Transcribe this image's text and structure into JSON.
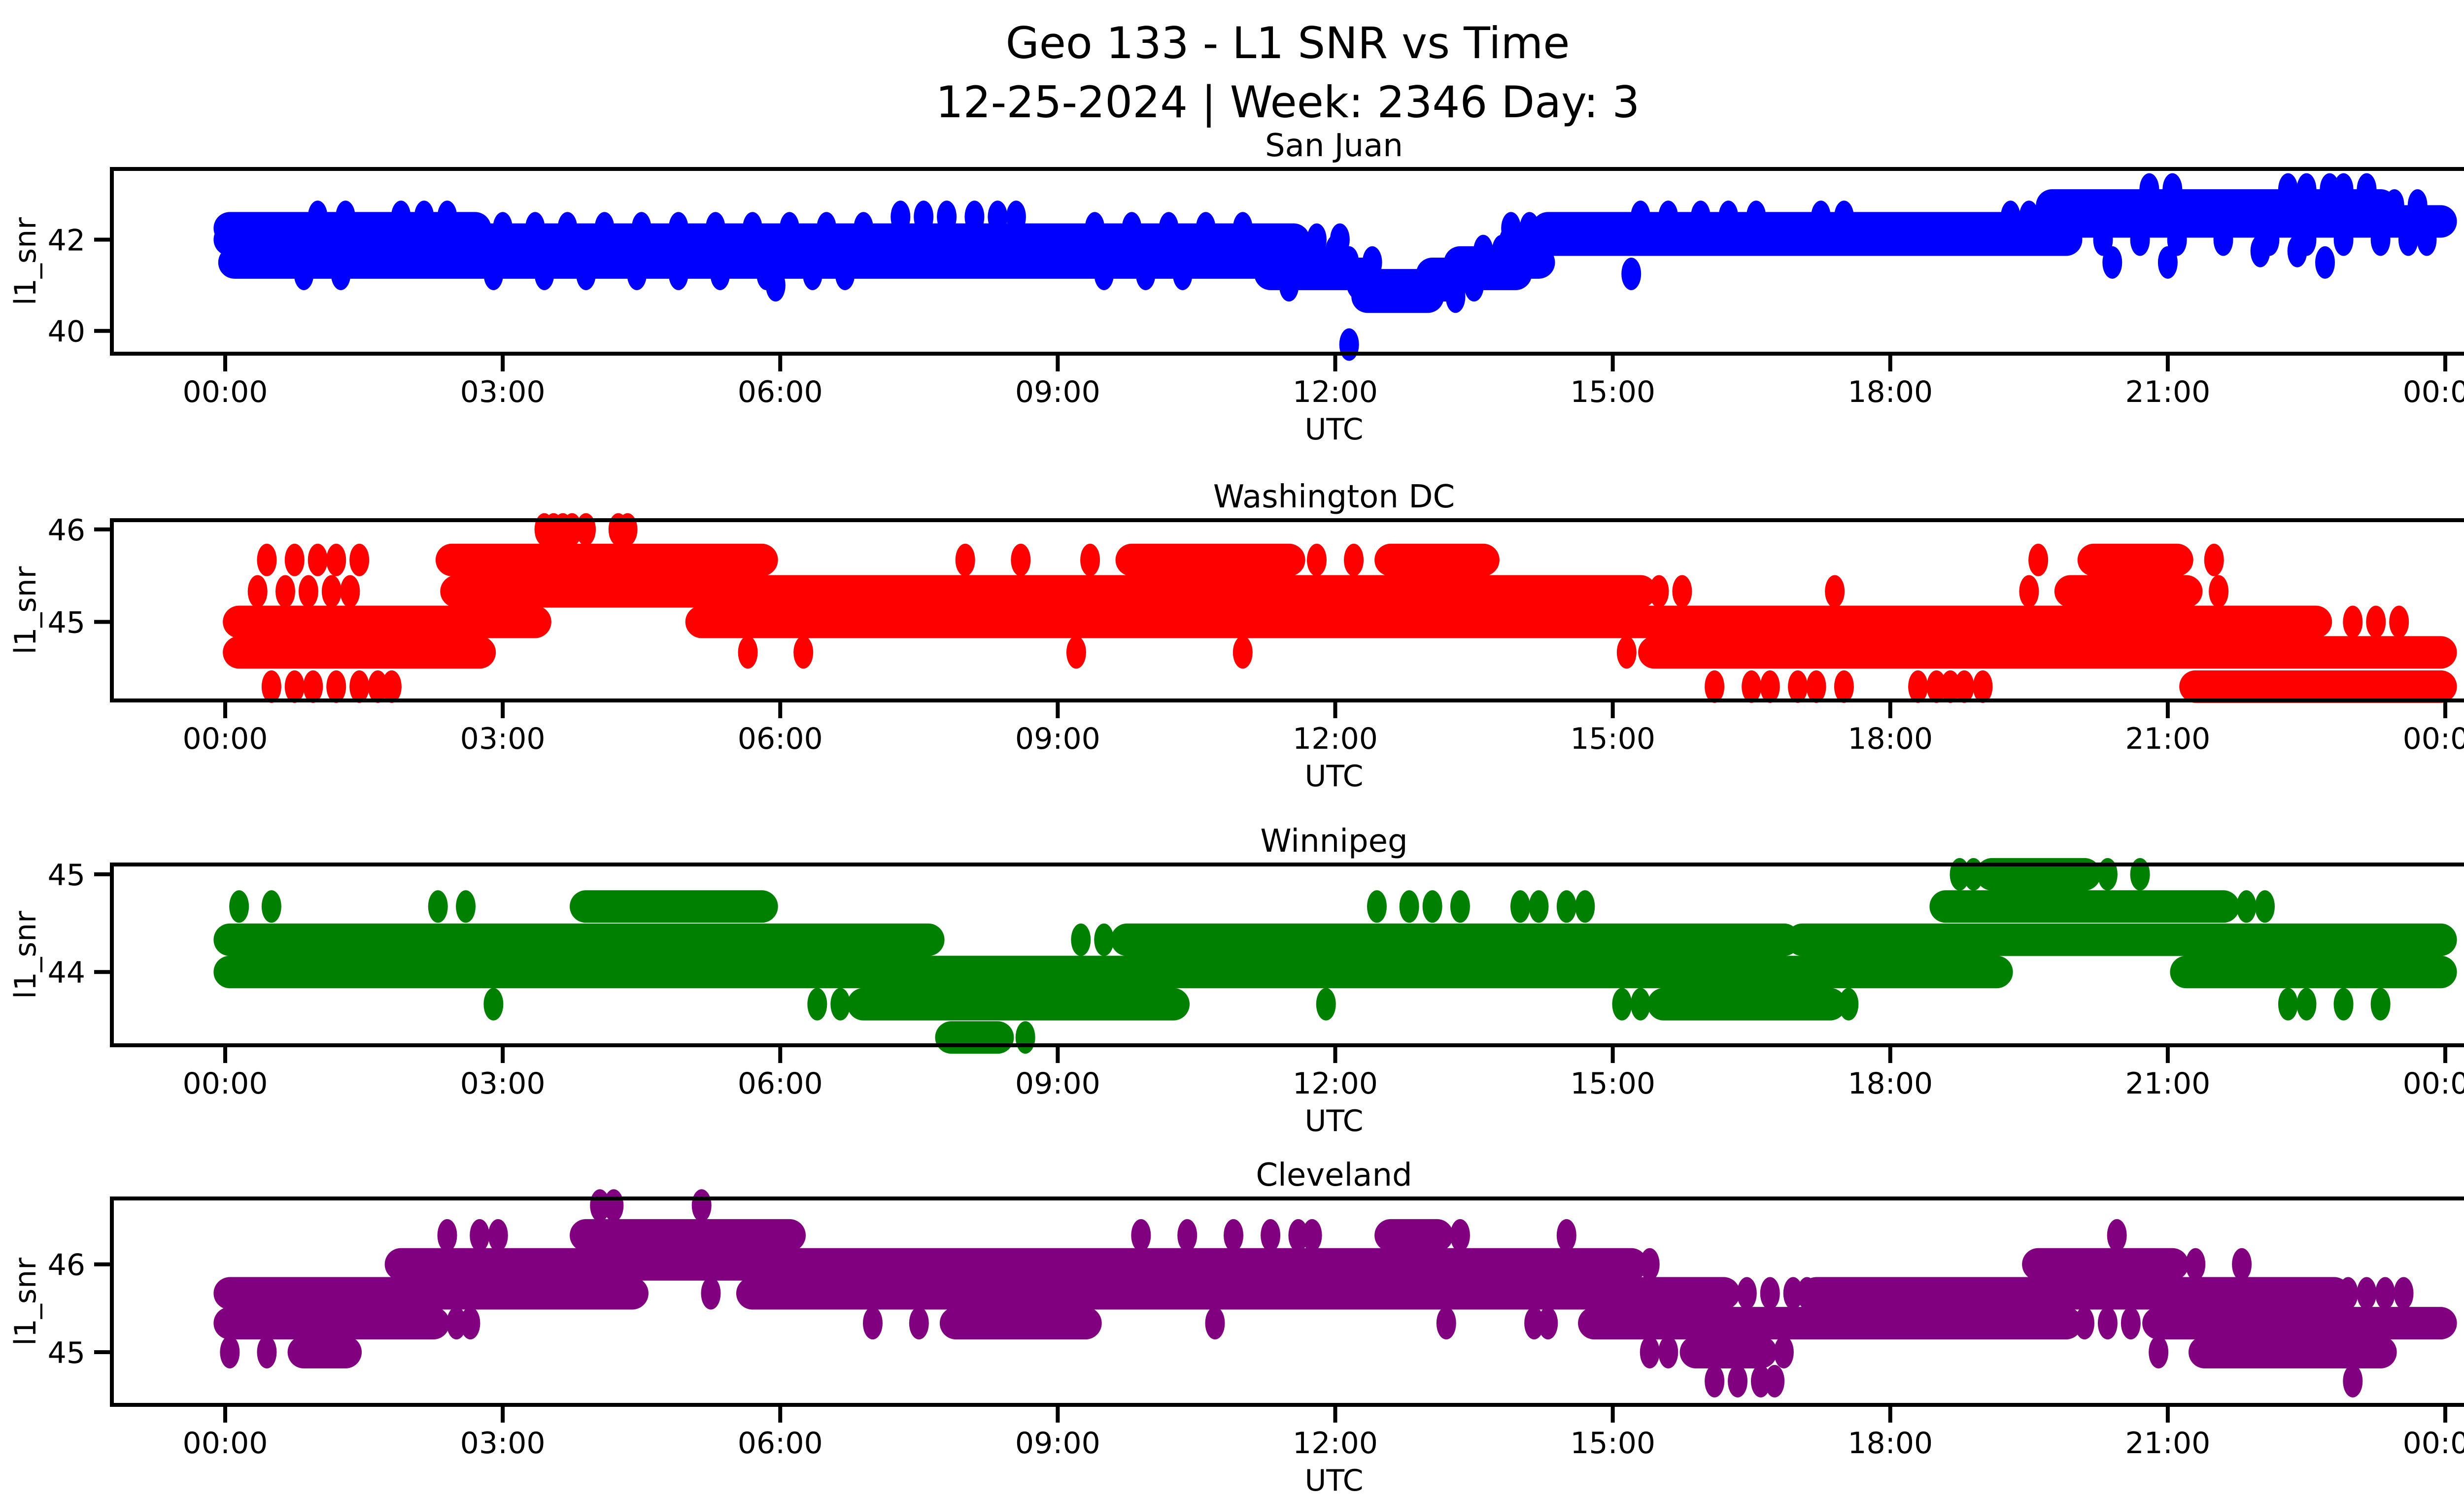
{
  "figure": {
    "title_line1": "Geo 133 - L1 SNR vs Time",
    "title_line2": "12-25-2024 | Week: 2346 Day: 3",
    "background_color": "#ffffff",
    "text_color": "#000000"
  },
  "chart_data": {
    "type": "scatter",
    "title": "Geo 133 - L1 SNR vs Time",
    "subtitle": "12-25-2024 | Week: 2346 Day: 3",
    "xlabel": "UTC",
    "ylabel": "l1_snr",
    "grid": false,
    "legend": "none",
    "x_axis": {
      "label": "UTC",
      "tick_hours": [
        0,
        3,
        6,
        9,
        12,
        15,
        18,
        21,
        24
      ],
      "tick_labels": [
        "00:00",
        "03:00",
        "06:00",
        "09:00",
        "12:00",
        "15:00",
        "18:00",
        "21:00",
        "00:00"
      ],
      "range_hours": [
        0,
        24
      ]
    },
    "subplots": [
      {
        "title": "San Juan",
        "color": "#0000ff",
        "ylim": [
          39.5,
          43.55
        ],
        "yticks": [
          40,
          42
        ],
        "levels": [
          {
            "v": 43.1,
            "spans": [],
            "dots": [
              20.8,
              21.05,
              22.3,
              22.5,
              22.75,
              22.9,
              23.15
            ]
          },
          {
            "v": 42.75,
            "spans": [
              [
                19.75,
                23.3
              ]
            ],
            "dots": [
              23.45,
              23.7
            ]
          },
          {
            "v": 42.5,
            "spans": [],
            "dots": [
              1.0,
              1.3,
              1.9,
              2.15,
              2.4,
              7.3,
              7.55,
              7.8,
              8.1,
              8.35,
              8.55,
              15.3,
              15.6,
              15.95,
              16.25,
              16.55,
              17.25,
              17.5,
              19.3,
              19.5
            ]
          },
          {
            "v": 42.4,
            "spans": [
              [
                19.75,
                23.95
              ]
            ],
            "dots": []
          },
          {
            "v": 42.25,
            "spans": [
              [
                0.05,
                2.7
              ],
              [
                14.3,
                19.75
              ]
            ],
            "dots": [
              3.0,
              3.35,
              3.7,
              4.1,
              4.5,
              4.9,
              5.3,
              5.7,
              6.1,
              6.5,
              6.9,
              9.4,
              9.8,
              10.2,
              10.6,
              11.0,
              13.9,
              14.1
            ]
          },
          {
            "v": 42.0,
            "spans": [
              [
                0.05,
                11.55
              ],
              [
                13.95,
                19.9
              ]
            ],
            "dots": [
              11.8,
              12.05,
              20.3,
              20.7,
              21.1,
              21.6,
              22.1,
              22.5,
              22.9,
              23.3,
              23.6,
              23.8
            ]
          },
          {
            "v": 41.75,
            "spans": [
              [
                2.75,
                11.3
              ]
            ],
            "dots": [
              0.3,
              0.7,
              1.1,
              12.0,
              13.6,
              13.8,
              22.0,
              22.4
            ]
          },
          {
            "v": 41.5,
            "spans": [
              [
                0.1,
                11.9
              ],
              [
                13.35,
                14.2
              ]
            ],
            "dots": [
              12.15,
              12.4,
              20.4,
              21.0,
              22.7
            ]
          },
          {
            "v": 41.25,
            "spans": [
              [
                11.3,
                12.3
              ],
              [
                13.05,
                13.95
              ]
            ],
            "dots": [
              0.85,
              1.25,
              2.9,
              3.45,
              3.9,
              4.45,
              4.9,
              5.35,
              5.85,
              6.35,
              6.7,
              9.5,
              9.95,
              10.35,
              15.2
            ]
          },
          {
            "v": 41.0,
            "spans": [
              [
                12.3,
                13.25
              ]
            ],
            "dots": [
              5.95,
              11.5,
              13.5
            ]
          },
          {
            "v": 40.75,
            "spans": [
              [
                12.35,
                13.0
              ]
            ],
            "dots": [
              13.3
            ]
          },
          {
            "v": 39.7,
            "spans": [],
            "dots": [
              12.15
            ]
          }
        ]
      },
      {
        "title": "Washington DC",
        "color": "#ff0000",
        "ylim": [
          44.15,
          46.1
        ],
        "yticks": [
          45,
          46
        ],
        "levels": [
          {
            "v": 46.0,
            "spans": [],
            "dots": [
              3.45,
              3.55,
              3.65,
              3.75,
              3.9,
              4.25,
              4.35
            ]
          },
          {
            "v": 45.67,
            "spans": [
              [
                2.45,
                5.8
              ],
              [
                9.8,
                11.5
              ],
              [
                12.6,
                13.6
              ],
              [
                20.2,
                21.1
              ]
            ],
            "dots": [
              0.45,
              0.75,
              1.0,
              1.2,
              1.45,
              8.0,
              8.6,
              9.35,
              11.8,
              12.2,
              19.6,
              21.5
            ]
          },
          {
            "v": 45.33,
            "spans": [
              [
                2.5,
                15.3
              ],
              [
                19.95,
                21.2
              ]
            ],
            "dots": [
              0.35,
              0.65,
              0.9,
              1.15,
              1.35,
              15.5,
              15.75,
              17.4,
              19.5,
              21.55
            ]
          },
          {
            "v": 45.0,
            "spans": [
              [
                0.15,
                3.35
              ],
              [
                5.15,
                22.6
              ]
            ],
            "dots": [
              23.0,
              23.25,
              23.5
            ]
          },
          {
            "v": 44.67,
            "spans": [
              [
                0.15,
                2.75
              ],
              [
                15.45,
                23.95
              ]
            ],
            "dots": [
              5.65,
              6.25,
              9.2,
              11.0,
              15.15
            ]
          },
          {
            "v": 44.3,
            "spans": [
              [
                21.3,
                23.95
              ]
            ],
            "dots": [
              0.5,
              0.75,
              0.95,
              1.2,
              1.45,
              1.65,
              1.8,
              16.1,
              16.5,
              16.7,
              17.0,
              17.2,
              17.5,
              18.3,
              18.5,
              18.65,
              18.8,
              19.0
            ]
          }
        ]
      },
      {
        "title": "Winnipeg",
        "color": "#008000",
        "ylim": [
          43.25,
          45.1
        ],
        "yticks": [
          44,
          45
        ],
        "levels": [
          {
            "v": 45.0,
            "spans": [
              [
                19.1,
                20.1
              ]
            ],
            "dots": [
              18.75,
              18.9,
              20.35,
              20.7
            ]
          },
          {
            "v": 44.67,
            "spans": [
              [
                3.9,
                5.8
              ],
              [
                18.6,
                21.6
              ]
            ],
            "dots": [
              0.15,
              0.5,
              2.3,
              2.6,
              12.45,
              12.8,
              13.05,
              13.35,
              14.0,
              14.2,
              14.5,
              14.7,
              21.85,
              22.05
            ]
          },
          {
            "v": 44.33,
            "spans": [
              [
                0.05,
                7.6
              ],
              [
                9.75,
                16.85
              ],
              [
                17.05,
                23.95
              ]
            ],
            "dots": [
              9.25,
              9.5
            ]
          },
          {
            "v": 44.0,
            "spans": [
              [
                0.05,
                19.15
              ],
              [
                21.2,
                23.95
              ]
            ],
            "dots": []
          },
          {
            "v": 43.67,
            "spans": [
              [
                6.9,
                10.25
              ],
              [
                15.55,
                17.35
              ]
            ],
            "dots": [
              2.9,
              6.4,
              6.65,
              11.9,
              15.1,
              15.3,
              17.55,
              22.3,
              22.5,
              22.9,
              23.3
            ]
          },
          {
            "v": 43.33,
            "spans": [
              [
                7.85,
                8.35
              ]
            ],
            "dots": [
              8.65
            ]
          }
        ]
      },
      {
        "title": "Cleveland",
        "color": "#800080",
        "ylim": [
          44.4,
          46.75
        ],
        "yticks": [
          45,
          46
        ],
        "levels": [
          {
            "v": 46.67,
            "spans": [],
            "dots": [
              4.05,
              4.2,
              5.15
            ]
          },
          {
            "v": 46.33,
            "spans": [
              [
                3.9,
                6.1
              ],
              [
                12.6,
                13.1
              ]
            ],
            "dots": [
              2.4,
              2.75,
              2.95,
              9.9,
              10.4,
              10.9,
              11.3,
              11.6,
              11.75,
              13.35,
              14.5,
              20.45
            ]
          },
          {
            "v": 46.0,
            "spans": [
              [
                1.9,
                15.2
              ],
              [
                19.6,
                21.05
              ]
            ],
            "dots": [
              15.4,
              21.3,
              21.8
            ]
          },
          {
            "v": 45.67,
            "spans": [
              [
                0.05,
                4.4
              ],
              [
                5.7,
                16.2
              ],
              [
                17.2,
                22.8
              ]
            ],
            "dots": [
              5.25,
              16.45,
              16.7,
              16.95,
              17.1,
              22.95,
              23.15,
              23.35,
              23.55
            ]
          },
          {
            "v": 45.33,
            "spans": [
              [
                0.05,
                2.25
              ],
              [
                7.9,
                9.3
              ],
              [
                14.8,
                19.9
              ],
              [
                20.9,
                23.95
              ]
            ],
            "dots": [
              2.5,
              2.65,
              7.0,
              7.5,
              10.7,
              13.2,
              14.15,
              14.3,
              20.1,
              20.35,
              20.6
            ]
          },
          {
            "v": 45.0,
            "spans": [
              [
                0.85,
                1.3
              ],
              [
                15.9,
                16.6
              ],
              [
                21.4,
                23.3
              ]
            ],
            "dots": [
              0.05,
              0.45,
              15.4,
              15.6,
              16.85,
              20.9
            ]
          },
          {
            "v": 44.67,
            "spans": [],
            "dots": [
              16.1,
              16.35,
              16.6,
              16.75,
              23.0
            ]
          }
        ]
      }
    ]
  }
}
